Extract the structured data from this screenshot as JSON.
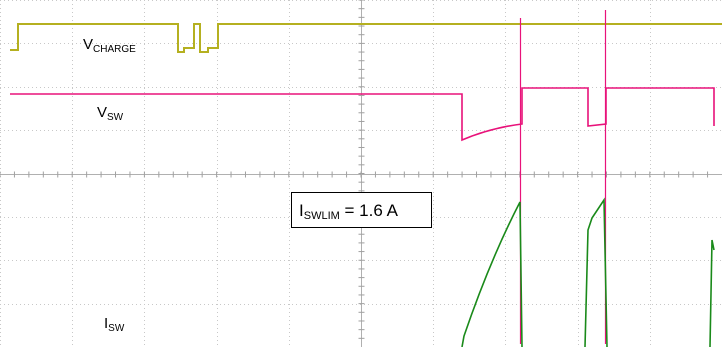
{
  "chart_data": {
    "type": "line",
    "title": "",
    "grid": true,
    "series": [
      {
        "name_main": "V",
        "name_sub": "CHARGE",
        "color": "#b5b020"
      },
      {
        "name_main": "V",
        "name_sub": "SW",
        "color": "#e8127a"
      },
      {
        "name_main": "I",
        "name_sub": "SW",
        "color": "#1a8a1a"
      }
    ],
    "annotation": {
      "main": "I",
      "sub": "SWLIM",
      "rest": " = 1.6 A"
    }
  }
}
